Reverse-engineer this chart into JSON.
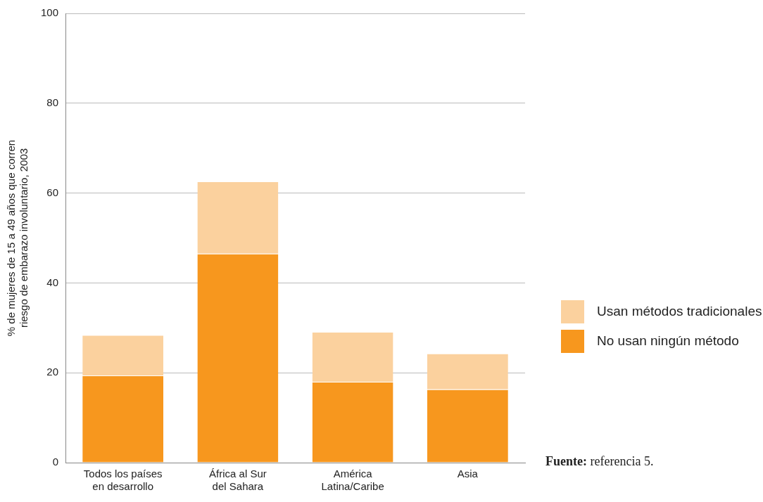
{
  "chart_data": {
    "type": "bar",
    "stacked": true,
    "ylabel": "% de mujeres de 15 a 49 años que corren\nriesgo de embarazo involuntario, 2003",
    "categories": [
      "Todos los países\nen desarrollo",
      "África al Sur\ndel Sahara",
      "América\nLatina/Caribe",
      "Asia"
    ],
    "series": [
      {
        "name": "No usan ningún método",
        "color": "#f7971e",
        "values": [
          19.4,
          46.5,
          18.0,
          16.3
        ]
      },
      {
        "name": "Usan métodos tradicionales",
        "color": "#fbd19e",
        "values": [
          9.0,
          16.1,
          11.1,
          8.0
        ]
      }
    ],
    "ylim": [
      0,
      100
    ],
    "yticks": [
      0,
      20,
      40,
      60,
      80,
      100
    ],
    "grid": "y",
    "legend": "right",
    "annotations": [
      "Fuente: referencia 5."
    ]
  }
}
